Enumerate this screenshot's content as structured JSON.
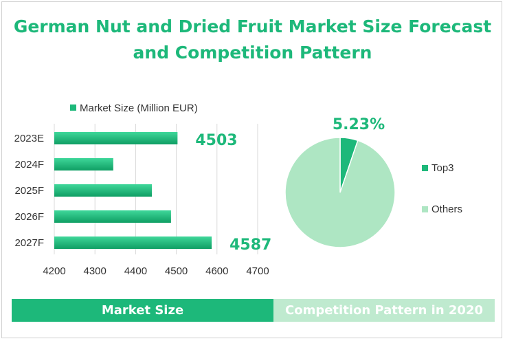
{
  "title_lines": [
    "German Nut and Dried Fruit Market Size Forecast",
    "and Competition Pattern"
  ],
  "colors": {
    "accent": "#1db87a",
    "bar_light": "#3fd79a",
    "bar_dark": "#0f9e63",
    "pie_top3": "#1db87a",
    "pie_others": "#aee6c3",
    "label_text": "#1db87a",
    "banner_right": "#bfeacf"
  },
  "banners": {
    "left": "Market Size",
    "right": "Competition Pattern in 2020"
  },
  "chart_data": [
    {
      "type": "bar",
      "orientation": "horizontal",
      "series": [
        {
          "name": "Market Size (Million EUR)",
          "values": [
            4503,
            4345,
            4440,
            4487,
            4587
          ]
        }
      ],
      "categories": [
        "2023E",
        "2024F",
        "2025F",
        "2026F",
        "2027F"
      ],
      "xlim": [
        4200,
        4700
      ],
      "xticks": [
        4200,
        4300,
        4400,
        4500,
        4600,
        4700
      ],
      "grid": true,
      "legend": "top",
      "data_labels": [
        {
          "category": "2023E",
          "text": "4503"
        },
        {
          "category": "2027F",
          "text": "4587"
        }
      ]
    },
    {
      "type": "pie",
      "slices": [
        {
          "name": "Top3",
          "value": 5.23
        },
        {
          "name": "Others",
          "value": 94.77
        }
      ],
      "data_labels": [
        {
          "slice": "Top3",
          "text": "5.23%"
        }
      ],
      "legend": "right"
    }
  ]
}
